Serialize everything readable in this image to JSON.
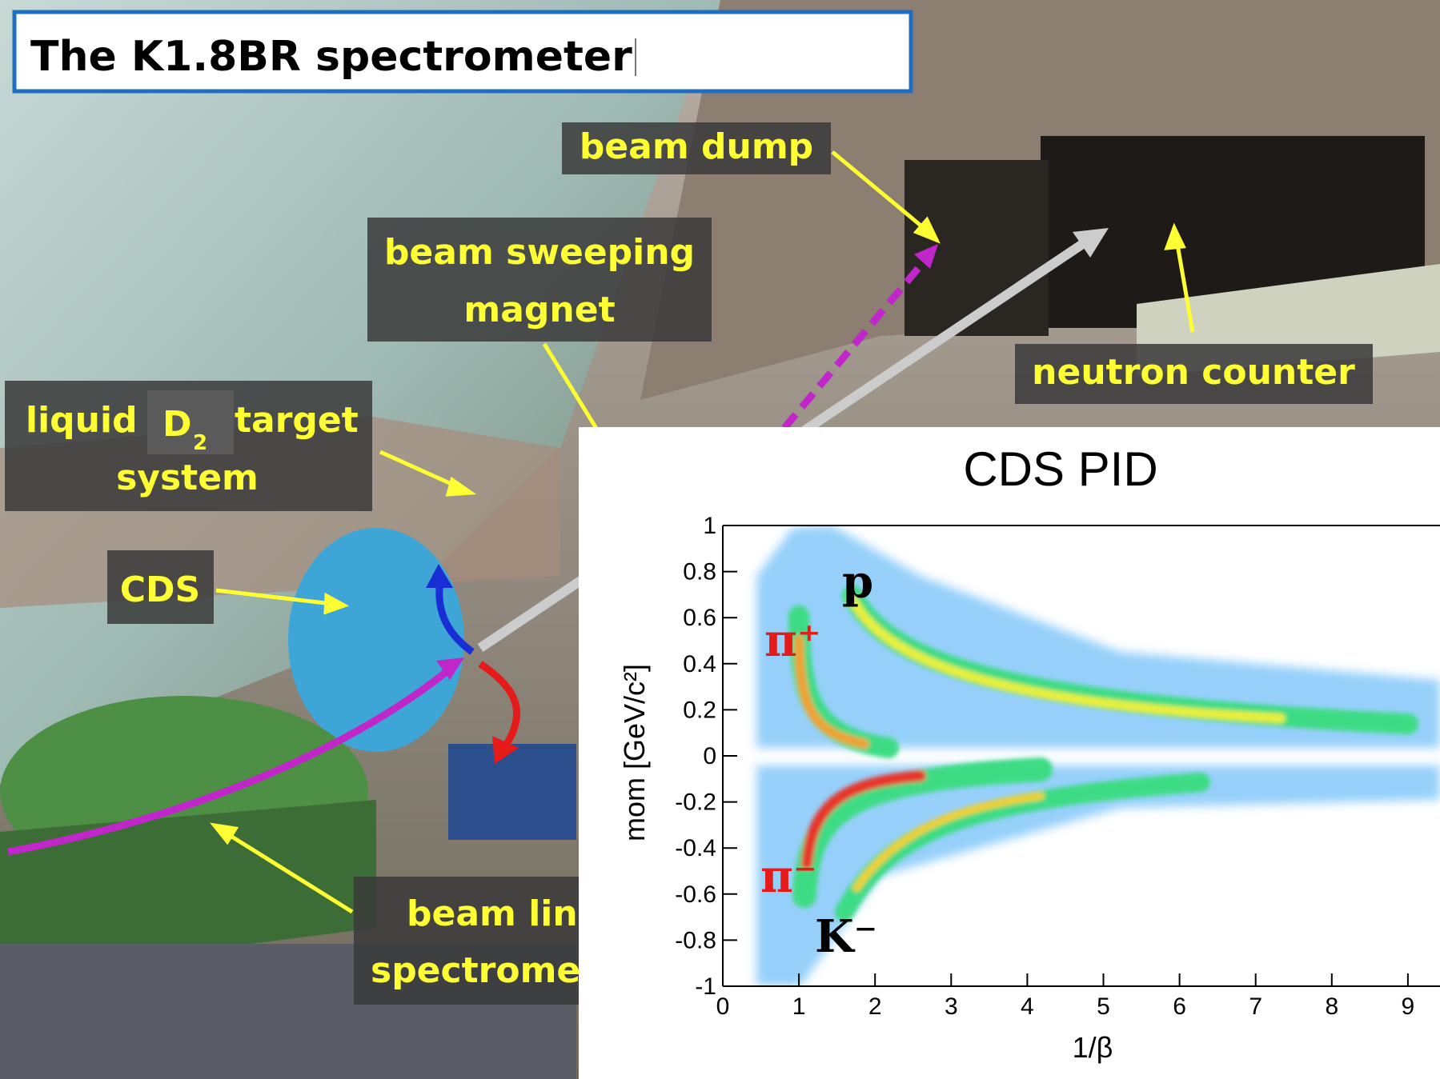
{
  "title": "The K1.8BR spectrometer",
  "labels": {
    "beam_dump": "beam dump",
    "sweeping_magnet": [
      "beam sweeping",
      "magnet"
    ],
    "neutron_counter": "neutron counter",
    "target": {
      "word1": "liquid",
      "d": "D",
      "sub": "2",
      "word2": "target",
      "line2": "system"
    },
    "cds": "CDS",
    "beam_line": [
      "beam line",
      "spectrometer"
    ]
  },
  "chart_data": {
    "type": "density",
    "title": "CDS PID",
    "xlabel": "1/β",
    "ylabel": "mom [GeV/c²]",
    "xlim": [
      0,
      10
    ],
    "ylim": [
      -1,
      1
    ],
    "xticks": [
      0,
      1,
      2,
      3,
      4,
      5,
      6,
      7,
      8,
      9
    ],
    "yticks": [
      -1,
      -0.8,
      -0.6,
      -0.4,
      -0.2,
      0,
      0.2,
      0.4,
      0.6,
      0.8,
      1
    ],
    "annotations": [
      "p",
      "π⁺",
      "π⁻",
      "K⁻"
    ]
  }
}
